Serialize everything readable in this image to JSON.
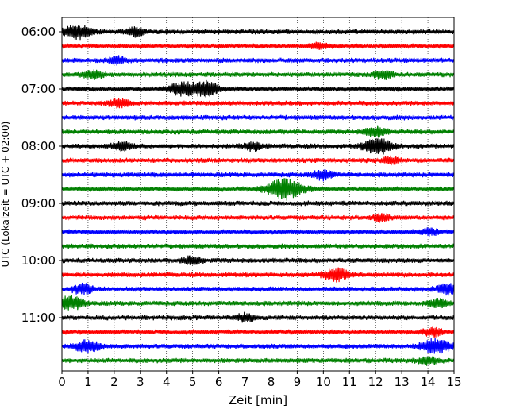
{
  "chart_data": {
    "type": "line",
    "title": "",
    "xlabel": "Zeit  [min]",
    "ylabel": "UTC (Lokalzeit = UTC + 02:00)",
    "xlim": [
      0,
      15
    ],
    "xticks": [
      0,
      1,
      2,
      3,
      4,
      5,
      6,
      7,
      8,
      9,
      10,
      11,
      12,
      13,
      14,
      15
    ],
    "ytick_labels": [
      "06:00",
      "07:00",
      "08:00",
      "09:00",
      "10:00",
      "11:00"
    ],
    "rows_per_hour": 4,
    "minutes_per_row": 15,
    "start_time": "06:00",
    "row_count": 24,
    "vertical_grid": "dotted",
    "colors": [
      "#000000",
      "#ff0000",
      "#0000ff",
      "#008000"
    ],
    "events": [
      {
        "row": 0,
        "minute": 0.6,
        "amplitude": 0.9
      },
      {
        "row": 0,
        "minute": 2.8,
        "amplitude": 0.5
      },
      {
        "row": 1,
        "minute": 9.9,
        "amplitude": 0.4
      },
      {
        "row": 2,
        "minute": 2.1,
        "amplitude": 0.4
      },
      {
        "row": 3,
        "minute": 1.2,
        "amplitude": 0.5
      },
      {
        "row": 3,
        "minute": 12.3,
        "amplitude": 0.5
      },
      {
        "row": 4,
        "minute": 4.6,
        "amplitude": 0.8
      },
      {
        "row": 4,
        "minute": 5.5,
        "amplitude": 0.9
      },
      {
        "row": 5,
        "minute": 2.2,
        "amplitude": 0.5
      },
      {
        "row": 7,
        "minute": 12.0,
        "amplitude": 0.6
      },
      {
        "row": 8,
        "minute": 2.3,
        "amplitude": 0.5
      },
      {
        "row": 8,
        "minute": 7.3,
        "amplitude": 0.5
      },
      {
        "row": 8,
        "minute": 12.1,
        "amplitude": 1.0
      },
      {
        "row": 9,
        "minute": 12.6,
        "amplitude": 0.4
      },
      {
        "row": 10,
        "minute": 10.0,
        "amplitude": 0.6
      },
      {
        "row": 11,
        "minute": 8.5,
        "amplitude": 1.3
      },
      {
        "row": 13,
        "minute": 12.2,
        "amplitude": 0.4
      },
      {
        "row": 14,
        "minute": 14.1,
        "amplitude": 0.4
      },
      {
        "row": 16,
        "minute": 5.0,
        "amplitude": 0.5
      },
      {
        "row": 17,
        "minute": 10.5,
        "amplitude": 0.8
      },
      {
        "row": 18,
        "minute": 0.8,
        "amplitude": 0.6
      },
      {
        "row": 18,
        "minute": 14.8,
        "amplitude": 0.7
      },
      {
        "row": 19,
        "minute": 0.3,
        "amplitude": 0.9
      },
      {
        "row": 19,
        "minute": 14.4,
        "amplitude": 0.5
      },
      {
        "row": 20,
        "minute": 7.0,
        "amplitude": 0.5
      },
      {
        "row": 21,
        "minute": 14.2,
        "amplitude": 0.5
      },
      {
        "row": 22,
        "minute": 1.0,
        "amplitude": 0.8
      },
      {
        "row": 22,
        "minute": 14.3,
        "amplitude": 1.0
      },
      {
        "row": 23,
        "minute": 14.0,
        "amplitude": 0.5
      }
    ]
  }
}
